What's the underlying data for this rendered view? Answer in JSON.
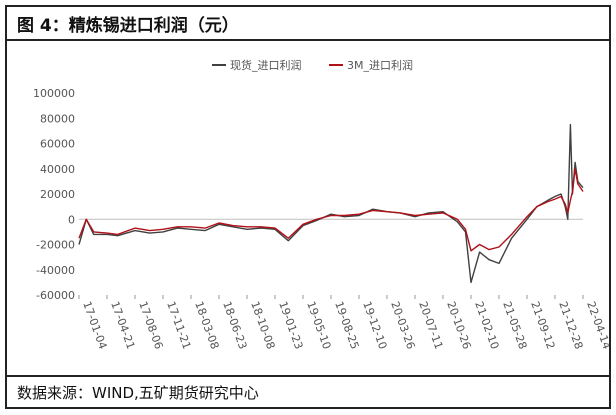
{
  "title": "图 4：精炼锡进口利润（元）",
  "source": "数据来源：WIND,五矿期货研究中心",
  "chart_data": {
    "type": "line",
    "title": "",
    "xlabel": "",
    "ylabel": "",
    "ylim": [
      -60000,
      100000
    ],
    "yticks": [
      "100000",
      "80000",
      "60000",
      "40000",
      "20000",
      "0",
      "-20000",
      "-40000",
      "-60000"
    ],
    "xticks": [
      "17-01-04",
      "17-04-21",
      "17-08-06",
      "17-11-21",
      "18-03-08",
      "18-06-23",
      "18-10-08",
      "19-01-23",
      "19-05-10",
      "19-08-25",
      "19-12-10",
      "20-03-26",
      "20-07-11",
      "20-10-26",
      "21-02-10",
      "21-05-28",
      "21-09-12",
      "21-12-28",
      "22-04-14"
    ],
    "legend_position": "top",
    "grid": false,
    "series": [
      {
        "name": "现货_进口利润",
        "color": "#404040",
        "x": [
          "17-01-04",
          "17-02-01",
          "17-03-01",
          "17-04-21",
          "17-06-01",
          "17-08-06",
          "17-10-01",
          "17-11-21",
          "18-01-15",
          "18-03-08",
          "18-05-01",
          "18-06-23",
          "18-08-15",
          "18-10-08",
          "18-12-01",
          "19-01-23",
          "19-03-15",
          "19-05-10",
          "19-07-01",
          "19-08-25",
          "19-10-15",
          "19-12-10",
          "20-02-01",
          "20-03-26",
          "20-05-15",
          "20-07-11",
          "20-09-01",
          "20-10-26",
          "20-12-20",
          "21-01-20",
          "21-02-10",
          "21-03-15",
          "21-04-20",
          "21-05-28",
          "21-07-15",
          "21-09-12",
          "21-10-20",
          "21-12-01",
          "21-12-28",
          "22-01-20",
          "22-02-05",
          "22-02-15",
          "22-02-25",
          "22-03-05",
          "22-03-15",
          "22-03-25",
          "22-04-14"
        ],
        "values": [
          -20000,
          0,
          -12000,
          -12000,
          -13000,
          -9000,
          -11000,
          -10000,
          -7000,
          -8000,
          -9000,
          -4000,
          -6000,
          -8000,
          -7000,
          -8000,
          -17000,
          -5000,
          -1000,
          4000,
          2000,
          3000,
          8000,
          6000,
          5000,
          2000,
          5000,
          6000,
          -2000,
          -10000,
          -50000,
          -26000,
          -32000,
          -35000,
          -15000,
          0,
          10000,
          15000,
          18000,
          20000,
          10000,
          0,
          75000,
          20000,
          45000,
          30000,
          25000
        ]
      },
      {
        "name": "3M_进口利润",
        "color": "#b01018",
        "x": [
          "17-01-04",
          "17-02-01",
          "17-03-01",
          "17-04-21",
          "17-06-01",
          "17-08-06",
          "17-10-01",
          "17-11-21",
          "18-01-15",
          "18-03-08",
          "18-05-01",
          "18-06-23",
          "18-08-15",
          "18-10-08",
          "18-12-01",
          "19-01-23",
          "19-03-15",
          "19-05-10",
          "19-07-01",
          "19-08-25",
          "19-10-15",
          "19-12-10",
          "20-02-01",
          "20-03-26",
          "20-05-15",
          "20-07-11",
          "20-09-01",
          "20-10-26",
          "20-12-20",
          "21-01-20",
          "21-02-10",
          "21-03-15",
          "21-04-20",
          "21-05-28",
          "21-07-15",
          "21-09-12",
          "21-10-20",
          "21-12-01",
          "21-12-28",
          "22-01-20",
          "22-02-05",
          "22-02-15",
          "22-02-25",
          "22-03-05",
          "22-03-15",
          "22-03-25",
          "22-04-14"
        ],
        "values": [
          -15000,
          0,
          -10000,
          -11000,
          -12000,
          -7000,
          -9000,
          -8000,
          -6000,
          -6000,
          -7000,
          -3000,
          -5000,
          -6000,
          -6000,
          -7000,
          -15000,
          -4000,
          0,
          3000,
          3000,
          4000,
          7000,
          6000,
          5000,
          3000,
          4000,
          5000,
          0,
          -8000,
          -25000,
          -20000,
          -24000,
          -22000,
          -12000,
          2000,
          10000,
          14000,
          16000,
          18000,
          12000,
          5000,
          15000,
          22000,
          40000,
          28000,
          22000
        ]
      }
    ]
  }
}
